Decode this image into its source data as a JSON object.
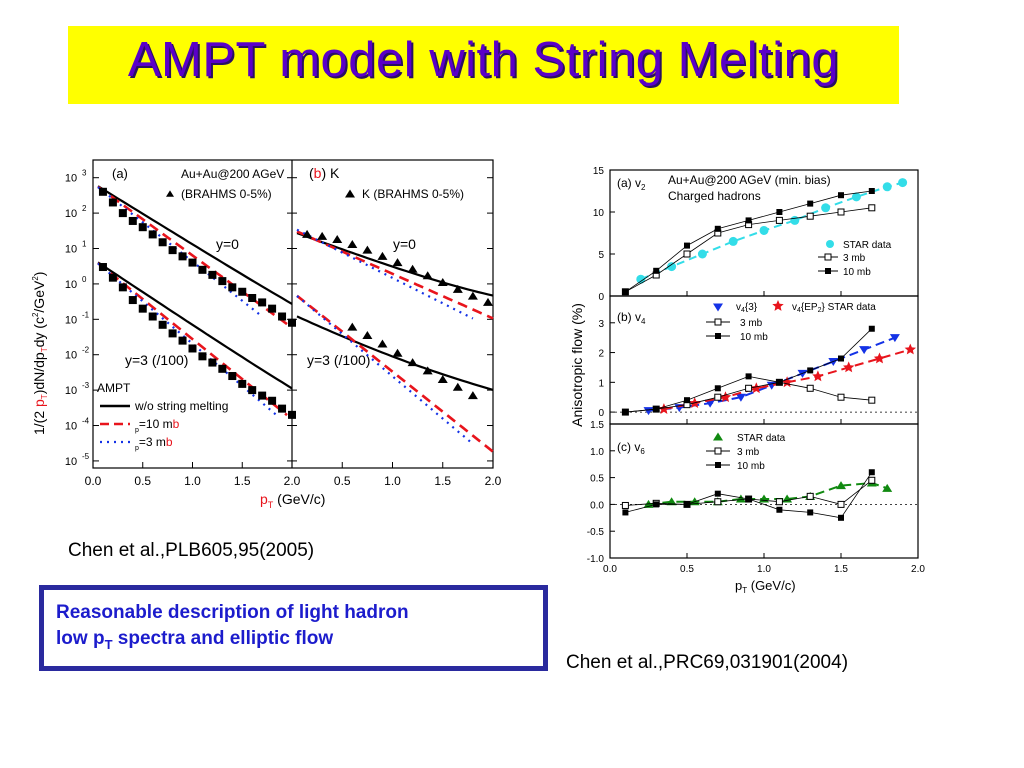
{
  "slide": {
    "title": "AMPT model with String Melting",
    "citation_left": "Chen et al.,PLB605,95(2005)",
    "citation_right": "Chen et al.,PRC69,031901(2004)",
    "note_line1": "Reasonable description of light hadron",
    "note_line2_pre": "low p",
    "note_line2_sub": "T",
    "note_line2_post": " spectra and elliptic flow",
    "colors": {
      "title_bg": "#ffff00",
      "title_text": "#5a00c8",
      "note_border": "#2a2a9e",
      "note_text": "#1c1ccc",
      "red": "#e8141c",
      "blue": "#1432e6",
      "cyan": "#33dde8",
      "green": "#118a11"
    }
  },
  "chart_data": [
    {
      "type": "scatter",
      "panel": "(a)",
      "log_y": true,
      "xlim": [
        0.0,
        2.0
      ],
      "ylim": [
        1e-05,
        3000
      ],
      "x_ticks": [
        "0.0",
        "0.5",
        "1.0",
        "1.5",
        "2.0"
      ],
      "y_ticks": [
        "10",
        "10",
        "10",
        "10",
        "10",
        "10",
        "10",
        "10",
        "10"
      ],
      "y_tick_exp": [
        "3",
        "2",
        "1",
        "0",
        "-1",
        "-2",
        "-3",
        "-4",
        "-5"
      ],
      "ylabel_parts": [
        "1/(2 ",
        "p",
        "T",
        ")dN/dp",
        "T",
        "dy (c",
        "2",
        "/GeV",
        "2",
        ")"
      ],
      "label_panel": "(a)",
      "label_system": "Au+Au@200 AGeV",
      "label_dataset": "(BRAHMS 0-5%)",
      "label_y0": "y=0",
      "label_y3": "y=3 (/100)",
      "legend_title": "AMPT",
      "legend_items": [
        "w/o string melting",
        "=10 m",
        "=3 m"
      ],
      "legend_sigma_sub": "p",
      "legend_b": "b",
      "series": [
        {
          "name": "y=0",
          "x": [
            0.1,
            0.2,
            0.3,
            0.4,
            0.5,
            0.6,
            0.7,
            0.8,
            0.9,
            1.0,
            1.1,
            1.2,
            1.3,
            1.4,
            1.5,
            1.6,
            1.7,
            1.8,
            1.9,
            2.0
          ],
          "y": [
            400,
            200,
            100,
            60,
            40,
            25,
            15,
            9,
            6,
            4,
            2.5,
            1.8,
            1.2,
            0.8,
            0.6,
            0.4,
            0.3,
            0.2,
            0.12,
            0.08
          ]
        },
        {
          "name": "y=3 (/100)",
          "x": [
            0.1,
            0.2,
            0.3,
            0.4,
            0.5,
            0.6,
            0.7,
            0.8,
            0.9,
            1.0,
            1.1,
            1.2,
            1.3,
            1.4,
            1.5,
            1.6,
            1.7,
            1.8,
            1.9,
            2.0
          ],
          "y": [
            3,
            1.5,
            0.8,
            0.35,
            0.2,
            0.12,
            0.07,
            0.04,
            0.025,
            0.015,
            0.009,
            0.006,
            0.004,
            0.0025,
            0.0015,
            0.001,
            0.0007,
            0.0005,
            0.0003,
            0.0002
          ]
        }
      ]
    },
    {
      "type": "scatter",
      "panel": "(b) K",
      "log_y": true,
      "xlim": [
        0.0,
        2.0
      ],
      "x_ticks": [
        "0.5",
        "1.0",
        "1.5",
        "2.0"
      ],
      "label_panel_b": "b",
      "label_panel_k": "K",
      "legend_marker_label": "K  (BRAHMS 0-5%)",
      "label_y0": "y=0",
      "label_y3": "y=3 (/100)",
      "series": [
        {
          "name": "y=0",
          "x": [
            0.15,
            0.3,
            0.45,
            0.6,
            0.75,
            0.9,
            1.05,
            1.2,
            1.35,
            1.5,
            1.65,
            1.8,
            1.95
          ],
          "y": [
            25,
            22,
            18,
            13,
            9,
            6,
            4,
            2.6,
            1.7,
            1.1,
            0.7,
            0.45,
            0.3
          ]
        },
        {
          "name": "y=3 (/100)",
          "x": [
            0.6,
            0.75,
            0.9,
            1.05,
            1.2,
            1.35,
            1.5,
            1.65,
            1.8
          ],
          "y": [
            0.06,
            0.035,
            0.02,
            0.011,
            0.006,
            0.0035,
            0.002,
            0.0012,
            0.0007
          ]
        }
      ]
    },
    {
      "type": "scatter",
      "panel": "(a) v2",
      "xlim": [
        0.0,
        2.0
      ],
      "ylim": [
        0,
        15
      ],
      "y_ticks": [
        "0",
        "5",
        "10",
        "15"
      ],
      "label_panel": "(a) v",
      "label_panel_sub": "2",
      "label_line1": "Au+Au@200 AGeV (min. bias)",
      "label_line2": "Charged hadrons",
      "legend_items": [
        "STAR data",
        "3 mb",
        "10 mb"
      ],
      "series": [
        {
          "name": "STAR data",
          "x": [
            0.2,
            0.4,
            0.6,
            0.8,
            1.0,
            1.2,
            1.4,
            1.6,
            1.8,
            1.9
          ],
          "y": [
            2.0,
            3.5,
            5.0,
            6.5,
            7.8,
            9.0,
            10.5,
            11.8,
            13.0,
            13.5
          ]
        },
        {
          "name": "3 mb",
          "x": [
            0.1,
            0.3,
            0.5,
            0.7,
            0.9,
            1.1,
            1.3,
            1.5,
            1.7
          ],
          "y": [
            0.5,
            2.5,
            5.0,
            7.5,
            8.5,
            9.0,
            9.5,
            10.0,
            10.5
          ]
        },
        {
          "name": "10 mb",
          "x": [
            0.1,
            0.3,
            0.5,
            0.7,
            0.9,
            1.1,
            1.3,
            1.5,
            1.7
          ],
          "y": [
            0.5,
            3.0,
            6.0,
            8.0,
            9.0,
            10.0,
            11.0,
            12.0,
            12.5
          ]
        }
      ]
    },
    {
      "type": "scatter",
      "panel": "(b) v4",
      "xlim": [
        0.0,
        2.0
      ],
      "ylim": [
        -0.4,
        3.9
      ],
      "y_ticks": [
        "0",
        "1",
        "2",
        "3"
      ],
      "label_panel": "(b) v",
      "label_panel_sub": "4",
      "legend_v43": "v",
      "legend_v43_sub": "4",
      "legend_v43_post": "{3}",
      "legend_v4ep": "v",
      "legend_v4ep_sub": "4",
      "legend_v4ep_post": "{EP",
      "legend_v4ep_sub2": "2",
      "legend_v4ep_post2": "}  STAR data",
      "legend_items": [
        "3 mb",
        "10 mb"
      ],
      "series": [
        {
          "name": "v4{3}",
          "x": [
            0.25,
            0.45,
            0.65,
            0.85,
            1.05,
            1.25,
            1.45,
            1.65,
            1.85
          ],
          "y": [
            0.05,
            0.15,
            0.3,
            0.5,
            0.9,
            1.3,
            1.7,
            2.1,
            2.5
          ]
        },
        {
          "name": "v4{EP2} STAR data",
          "x": [
            0.35,
            0.55,
            0.75,
            0.95,
            1.15,
            1.35,
            1.55,
            1.75,
            1.95
          ],
          "y": [
            0.1,
            0.3,
            0.5,
            0.8,
            1.0,
            1.2,
            1.5,
            1.8,
            2.1
          ]
        },
        {
          "name": "3 mb",
          "x": [
            0.1,
            0.3,
            0.5,
            0.7,
            0.9,
            1.1,
            1.3,
            1.5,
            1.7
          ],
          "y": [
            0.0,
            0.1,
            0.25,
            0.5,
            0.8,
            1.0,
            0.8,
            0.5,
            0.4
          ]
        },
        {
          "name": "10 mb",
          "x": [
            0.1,
            0.3,
            0.5,
            0.7,
            0.9,
            1.1,
            1.3,
            1.5,
            1.7
          ],
          "y": [
            0.0,
            0.1,
            0.4,
            0.8,
            1.2,
            1.0,
            1.4,
            1.8,
            2.8
          ]
        }
      ]
    },
    {
      "type": "scatter",
      "panel": "(c) v6",
      "xlim": [
        0.0,
        2.0
      ],
      "ylim": [
        -1.0,
        1.5
      ],
      "x_ticks": [
        "0.0",
        "0.5",
        "1.0",
        "1.5",
        "2.0"
      ],
      "y_ticks": [
        "1.5",
        "1.0",
        "0.5",
        "0.0",
        "-0.5",
        "-1.0"
      ],
      "label_panel": "(c) v",
      "label_panel_sub": "6",
      "legend_items": [
        "STAR data",
        "3 mb",
        "10 mb"
      ],
      "xlabel_pre": "p",
      "xlabel_sub": "T",
      "xlabel_post": " (GeV/c)",
      "shared_ylabel": "Anisotropic flow (%)",
      "series": [
        {
          "name": "STAR data",
          "x": [
            0.25,
            0.4,
            0.55,
            0.7,
            0.85,
            1.0,
            1.15,
            1.3,
            1.5,
            1.7,
            1.8
          ],
          "y": [
            0.0,
            0.05,
            0.05,
            0.05,
            0.1,
            0.1,
            0.1,
            0.15,
            0.35,
            0.4,
            0.3
          ]
        },
        {
          "name": "3 mb",
          "x": [
            0.1,
            0.3,
            0.5,
            0.7,
            0.9,
            1.1,
            1.3,
            1.5,
            1.7
          ],
          "y": [
            -0.02,
            0.02,
            0.0,
            0.05,
            0.1,
            0.05,
            0.15,
            0.0,
            0.45
          ]
        },
        {
          "name": "10 mb",
          "x": [
            0.1,
            0.3,
            0.5,
            0.7,
            0.9,
            1.1,
            1.3,
            1.5,
            1.7
          ],
          "y": [
            -0.15,
            0.0,
            0.0,
            0.2,
            0.1,
            -0.1,
            -0.15,
            -0.25,
            0.6
          ]
        }
      ]
    }
  ]
}
